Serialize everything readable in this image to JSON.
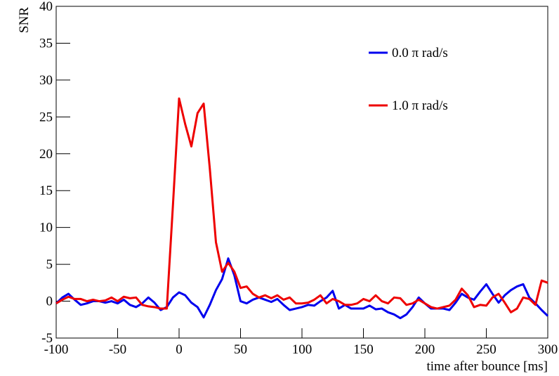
{
  "chart_data": {
    "type": "line",
    "x_label": "time after bounce [ms]",
    "y_label": "SNR",
    "x": [
      -100,
      -95,
      -90,
      -85,
      -80,
      -75,
      -70,
      -65,
      -60,
      -55,
      -50,
      -45,
      -40,
      -35,
      -30,
      -25,
      -20,
      -15,
      -10,
      -5,
      0,
      5,
      10,
      15,
      20,
      25,
      30,
      35,
      40,
      45,
      50,
      55,
      60,
      65,
      70,
      75,
      80,
      85,
      90,
      95,
      100,
      105,
      110,
      115,
      120,
      125,
      130,
      135,
      140,
      145,
      150,
      155,
      160,
      165,
      170,
      175,
      180,
      185,
      190,
      195,
      200,
      205,
      210,
      215,
      220,
      225,
      230,
      235,
      240,
      245,
      250,
      255,
      260,
      265,
      270,
      275,
      280,
      285,
      290,
      295,
      300
    ],
    "series": [
      {
        "name": "0.0 π rad/s",
        "color": "#0000ee",
        "values": [
          -0.3,
          0.5,
          1.0,
          0.2,
          -0.5,
          -0.3,
          0,
          0,
          -0.2,
          0,
          -0.3,
          0.2,
          -0.5,
          -0.8,
          -0.3,
          0.5,
          -0.2,
          -1.2,
          -0.8,
          0.5,
          1.2,
          0.8,
          -0.2,
          -0.8,
          -2.2,
          -0.5,
          1.5,
          3.0,
          5.8,
          3.5,
          0,
          -0.3,
          0.2,
          0.5,
          0.2,
          -0.1,
          0.3,
          -0.5,
          -1.2,
          -1.0,
          -0.8,
          -0.5,
          -0.6,
          0,
          0.5,
          1.4,
          -1.0,
          -0.5,
          -1.0,
          -1.0,
          -1.0,
          -0.6,
          -1.1,
          -1.0,
          -1.5,
          -1.8,
          -2.3,
          -1.8,
          -0.8,
          0.5,
          -0.3,
          -1.0,
          -1.0,
          -1.0,
          -1.2,
          -0.2,
          1.0,
          0.5,
          0.2,
          1.3,
          2.3,
          1.0,
          -0.2,
          0.8,
          1.5,
          2.0,
          2.3,
          0.5,
          -0.3,
          -1.2,
          -2.0
        ]
      },
      {
        "name": "1.0 π rad/s",
        "color": "#ee0000",
        "values": [
          -0.3,
          0.2,
          0.6,
          0.3,
          0.3,
          0,
          0.2,
          0,
          0.1,
          0.5,
          0,
          0.6,
          0.4,
          0.5,
          -0.5,
          -0.7,
          -0.8,
          -1.0,
          -1.0,
          13,
          27.5,
          24,
          21,
          25.5,
          26.8,
          18,
          8,
          4,
          5.2,
          4,
          1.8,
          2.0,
          1.0,
          0.5,
          0.8,
          0.4,
          0.8,
          0.2,
          0.5,
          -0.3,
          -0.3,
          -0.2,
          0.2,
          0.8,
          -0.3,
          0.3,
          0,
          -0.5,
          -0.5,
          -0.3,
          0.3,
          0,
          0.8,
          0,
          -0.3,
          0.5,
          0.4,
          -0.5,
          -0.3,
          0.2,
          -0.3,
          -0.8,
          -1.0,
          -0.8,
          -0.6,
          0.2,
          1.7,
          0.8,
          -0.8,
          -0.5,
          -0.6,
          0.5,
          1.0,
          -0.2,
          -1.5,
          -1.0,
          0.5,
          0.3,
          -0.5,
          2.8,
          2.5
        ]
      }
    ],
    "xlim": [
      -100,
      300
    ],
    "xticks": [
      -100,
      -50,
      0,
      50,
      100,
      150,
      200,
      250,
      300
    ],
    "ylim": [
      -5,
      40
    ],
    "yticks": [
      -5,
      0,
      5,
      10,
      15,
      20,
      25,
      30,
      35,
      40
    ]
  }
}
